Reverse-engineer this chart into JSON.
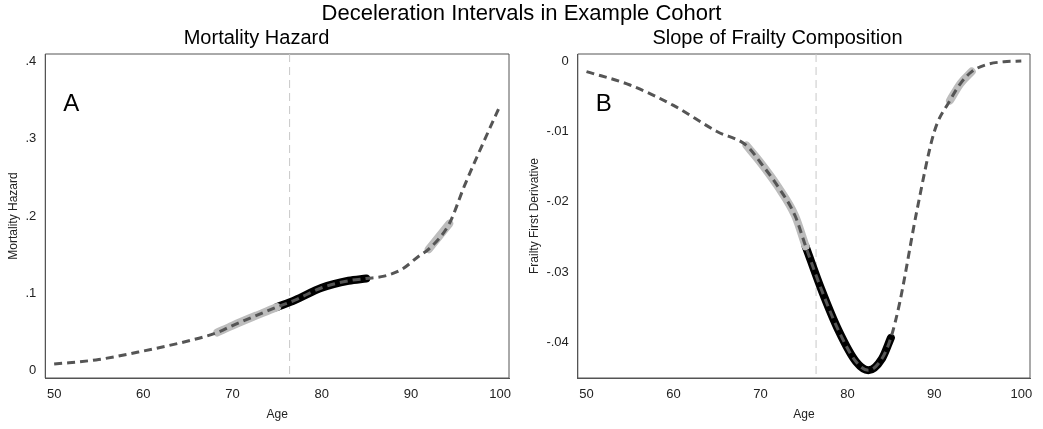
{
  "chart_data": [
    {
      "type": "other",
      "title": "Deceleration Intervals in Example Cohort"
    },
    {
      "type": "line",
      "title": "Mortality Hazard",
      "xlabel": "Age",
      "ylabel": "Mortality Hazard",
      "annotations": [
        "A"
      ],
      "xlim": [
        49,
        101
      ],
      "xticks": [
        50,
        60,
        70,
        80,
        90,
        100
      ],
      "ylim": [
        -0.01,
        0.41
      ],
      "yticks": [
        0,
        {
          "value": 0.1,
          "label": ".1"
        },
        {
          "value": 0.2,
          "label": ".2"
        },
        {
          "value": 0.3,
          "label": ".3"
        },
        {
          "value": 0.4,
          "label": ".4"
        }
      ],
      "grid": false,
      "legend": false,
      "marker": "none",
      "ref_lines": [
        {
          "axis": "x",
          "value": 76.4,
          "color": "#c8c8c8",
          "line_style": "dashed"
        }
      ],
      "series": [
        {
          "color": "#555555",
          "line_style": "dashed",
          "x": [
            50,
            55,
            60,
            65,
            68.3,
            70,
            75,
            77,
            80,
            83,
            85,
            87,
            89,
            91,
            92,
            94.3,
            96,
            98,
            100
          ],
          "values": [
            0.008,
            0.014,
            0.025,
            0.038,
            0.049,
            0.058,
            0.082,
            0.091,
            0.107,
            0.116,
            0.119,
            0.122,
            0.131,
            0.149,
            0.157,
            0.19,
            0.239,
            0.292,
            0.343
          ]
        },
        {
          "color": "#bdbdbd",
          "line_style": "solid",
          "x": [
            68.3,
            70,
            75
          ],
          "values": [
            0.049,
            0.058,
            0.082
          ]
        },
        {
          "color": "#000000",
          "line_style": "solid",
          "x": [
            75,
            77,
            80,
            83,
            85
          ],
          "values": [
            0.082,
            0.091,
            0.107,
            0.116,
            0.119
          ]
        },
        {
          "color": "#bdbdbd",
          "line_style": "solid",
          "x": [
            92,
            94.3
          ],
          "values": [
            0.157,
            0.19
          ]
        }
      ]
    },
    {
      "type": "line",
      "title": "Slope of Frailty Composition",
      "xlabel": "Age",
      "ylabel": "Frailty First Derivative",
      "annotations": [
        "B"
      ],
      "xlim": [
        49,
        101
      ],
      "xticks": [
        50,
        60,
        70,
        80,
        90,
        100
      ],
      "ylim": [
        -0.045,
        0.001
      ],
      "yticks": [
        {
          "value": -0.04,
          "label": "-.04"
        },
        {
          "value": -0.03,
          "label": "-.03"
        },
        {
          "value": -0.02,
          "label": "-.02"
        },
        {
          "value": -0.01,
          "label": "-.01"
        },
        0
      ],
      "grid": false,
      "legend": false,
      "marker": "none",
      "ref_lines": [
        {
          "axis": "x",
          "value": 76.4,
          "color": "#c8c8c8",
          "line_style": "dashed"
        }
      ],
      "series": [
        {
          "color": "#555555",
          "line_style": "dashed",
          "x": [
            50,
            55,
            60,
            65,
            68.4,
            70,
            72,
            74,
            75.2,
            77,
            79,
            81,
            82.4,
            84,
            85,
            86,
            88,
            90,
            91.8,
            93,
            94.3,
            96,
            98,
            100
          ],
          "values": [
            -0.0015,
            -0.0034,
            -0.0063,
            -0.01,
            -0.012,
            -0.0144,
            -0.0178,
            -0.022,
            -0.0263,
            -0.0324,
            -0.0383,
            -0.0427,
            -0.0439,
            -0.0422,
            -0.0393,
            -0.0344,
            -0.0212,
            -0.01,
            -0.0056,
            -0.0032,
            -0.0015,
            -0.0005,
            -0.0001,
            0
          ]
        },
        {
          "color": "#bdbdbd",
          "line_style": "solid",
          "x": [
            68.4,
            70,
            72,
            74,
            75.2
          ],
          "values": [
            -0.012,
            -0.0144,
            -0.0178,
            -0.022,
            -0.0263
          ]
        },
        {
          "color": "#000000",
          "line_style": "solid",
          "x": [
            75.2,
            77,
            79,
            81,
            82.4,
            84,
            85
          ],
          "values": [
            -0.0263,
            -0.0324,
            -0.0383,
            -0.0427,
            -0.0439,
            -0.0422,
            -0.0393
          ]
        },
        {
          "color": "#bdbdbd",
          "line_style": "solid",
          "x": [
            91.8,
            93,
            94.3
          ],
          "values": [
            -0.0056,
            -0.0032,
            -0.0015
          ]
        }
      ]
    }
  ]
}
